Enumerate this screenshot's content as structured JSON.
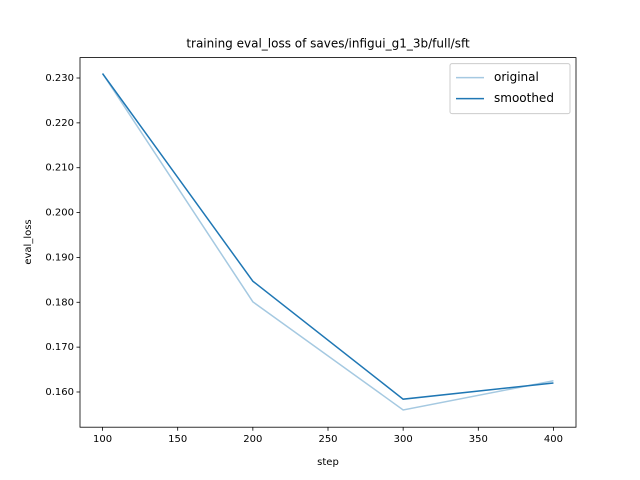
{
  "chart_data": {
    "type": "line",
    "title": "training eval_loss of saves/infigui_g1_3b/full/sft",
    "x_label": "step",
    "y_label": "eval_loss",
    "x": [
      100,
      200,
      300,
      400
    ],
    "series": [
      {
        "name": "original",
        "color": "#a5c9e1",
        "values": [
          0.231,
          0.1801,
          0.156,
          0.1625
        ]
      },
      {
        "name": "smoothed",
        "color": "#1f77b4",
        "values": [
          0.231,
          0.1847,
          0.1584,
          0.162
        ]
      }
    ],
    "xlim": [
      85,
      415
    ],
    "xticks": [
      100,
      150,
      200,
      250,
      300,
      350,
      400
    ],
    "ylim": [
      0.15215,
      0.23455
    ],
    "yticks": [
      {
        "value": 0.16,
        "label": "0.160"
      },
      {
        "value": 0.17,
        "label": "0.170"
      },
      {
        "value": 0.18,
        "label": "0.180"
      },
      {
        "value": 0.19,
        "label": "0.190"
      },
      {
        "value": 0.2,
        "label": "0.200"
      },
      {
        "value": 0.21,
        "label": "0.210"
      },
      {
        "value": 0.22,
        "label": "0.220"
      },
      {
        "value": 0.23,
        "label": "0.230"
      }
    ],
    "legend": "upper-right",
    "grid": false
  }
}
